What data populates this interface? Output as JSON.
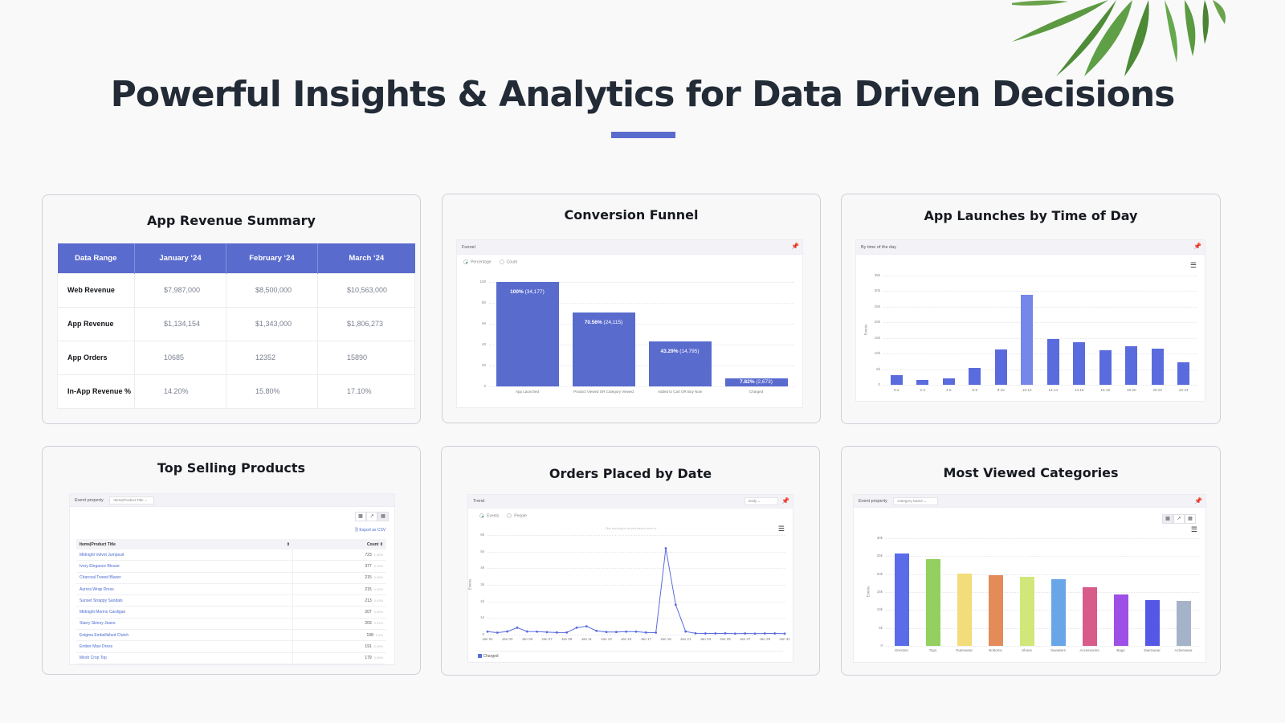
{
  "hero": {
    "title": "Powerful Insights & Analytics for Data Driven Decisions",
    "accent_color": "#5a6bce"
  },
  "decoration": {
    "leaves": "palm-leaves-image"
  },
  "cards": {
    "revenue": {
      "title": "App Revenue Summary",
      "headers": [
        "Data Range",
        "January ‘24",
        "February ‘24",
        "March ‘24"
      ],
      "rows": [
        {
          "label": "Web Revenue",
          "values": [
            "$7,987,000",
            "$8,500,000",
            "$10,563,000"
          ]
        },
        {
          "label": "App Revenue",
          "values": [
            "$1,134,154",
            "$1,343,000",
            "$1,806,273"
          ]
        },
        {
          "label": "App Orders",
          "values": [
            "10685",
            "12352",
            "15890"
          ]
        },
        {
          "label": "In-App Revenue %",
          "values": [
            "14.20%",
            "15.80%",
            "17.10%"
          ]
        }
      ]
    },
    "funnel": {
      "title": "Conversion Funnel",
      "panel_title": "Funnel",
      "radio": [
        "Percentage",
        "Count"
      ],
      "radio_selected": "Percentage",
      "bar_labels_bold": [
        "100%",
        "70.56%",
        "43.29%",
        "7.82%"
      ],
      "bar_labels_count": [
        "(34,177)",
        "(24,115)",
        "(14,795)",
        "(2,673)"
      ]
    },
    "launches": {
      "title": "App Launches by Time of Day",
      "panel_title": "By time of the day",
      "yaxis_title": "Events"
    },
    "products": {
      "title": "Top Selling Products",
      "event_property_label": "Event property",
      "event_property_value": "Items|Product Title",
      "export_label": "Export as CSV",
      "col_title": "Items|Product Title",
      "col_count": "Count",
      "rows": [
        {
          "name": "Midnight Velvet Jumpsuit",
          "count": "723",
          "pct": "1.45%"
        },
        {
          "name": "Ivory Elegance Blouse",
          "count": "377",
          "pct": "0.76%"
        },
        {
          "name": "Charcoal Tweed Blazer",
          "count": "215",
          "pct": "0.43%"
        },
        {
          "name": "Aurora Wrap Dress",
          "count": "215",
          "pct": "0.43%"
        },
        {
          "name": "Sunset Strappy Sandals",
          "count": "213",
          "pct": "0.43%"
        },
        {
          "name": "Midnight Merino Cardigan",
          "count": "207",
          "pct": "0.42%"
        },
        {
          "name": "Starry Skinny Jeans",
          "count": "203",
          "pct": "0.41%"
        },
        {
          "name": "Enigma Embellished Clutch",
          "count": "198",
          "pct": "0.4%"
        },
        {
          "name": "Ember Maxi Dress",
          "count": "191",
          "pct": "0.38%"
        },
        {
          "name": "Mesh Crop Top",
          "count": "179",
          "pct": "0.36%"
        }
      ]
    },
    "orders": {
      "title": "Orders Placed by Date",
      "panel_title": "Trend",
      "granularity": "Daily",
      "radio": [
        "Events",
        "People"
      ],
      "radio_selected": "Events",
      "hint": "Click and drag in the plot area to zoom in",
      "yaxis_title": "Events",
      "legend": "Charged"
    },
    "categories": {
      "title": "Most Viewed Categories",
      "event_property_label": "Event property",
      "event_property_value": "Category Name",
      "yaxis_title": "Events"
    }
  },
  "chart_data": [
    {
      "type": "bar",
      "title": "Conversion Funnel",
      "categories": [
        "App Launched",
        "Product Viewed OR Category Viewed",
        "Added to Cart OR Buy Now",
        "Charged"
      ],
      "values": [
        100,
        70.56,
        43.29,
        7.82
      ],
      "counts": [
        34177,
        24115,
        14795,
        2673
      ],
      "xlabel": "",
      "ylabel": "",
      "ylim": [
        0,
        100
      ],
      "yticks": [
        "0",
        "20",
        "40",
        "60",
        "80",
        "100"
      ],
      "color": "#5a6bce",
      "grid": true
    },
    {
      "type": "bar",
      "title": "App Launches by Time of Day",
      "categories": [
        "0-2",
        "2-4",
        "4-6",
        "6-8",
        "8-10",
        "10-12",
        "12-14",
        "14-16",
        "16-18",
        "18-20",
        "20-22",
        "22-24"
      ],
      "values": [
        3000,
        1500,
        2000,
        5500,
        11300,
        28900,
        14600,
        13600,
        11000,
        12300,
        11500,
        7300
      ],
      "xlabel": "",
      "ylabel": "Events",
      "ylim": [
        0,
        35000
      ],
      "yticks": [
        "0",
        "5k",
        "10k",
        "15k",
        "20k",
        "25k",
        "30k",
        "35k"
      ],
      "color": "#5a6bde",
      "highlight_color": "#7587e8",
      "grid": true
    },
    {
      "type": "line",
      "title": "Orders Placed by Date",
      "x": [
        "Jan 01",
        "Jan 02",
        "Jan 03",
        "Jan 04",
        "Jan 05",
        "Jan 06",
        "Jan 07",
        "Jan 08",
        "Jan 09",
        "Jan 10",
        "Jan 11",
        "Jan 12",
        "Jan 13",
        "Jan 14",
        "Jan 15",
        "Jan 16",
        "Jan 17",
        "Jan 18",
        "Jan 19",
        "Jan 20",
        "Jan 21",
        "Jan 22",
        "Jan 23",
        "Jan 24",
        "Jan 25",
        "Jan 26",
        "Jan 27",
        "Jan 28",
        "Jan 29",
        "Jan 30",
        "Jan 31"
      ],
      "xticks": [
        "Jan 01",
        "Jan 03",
        "Jan 05",
        "Jan 07",
        "Jan 09",
        "Jan 11",
        "Jan 13",
        "Jan 15",
        "Jan 17",
        "Jan 19",
        "Jan 21",
        "Jan 23",
        "Jan 25",
        "Jan 27",
        "Jan 29",
        "Jan 31"
      ],
      "series": [
        {
          "name": "Charged",
          "values": [
            180,
            120,
            190,
            420,
            190,
            180,
            150,
            130,
            130,
            420,
            500,
            230,
            160,
            160,
            180,
            180,
            130,
            120,
            5200,
            1800,
            190,
            80,
            70,
            70,
            80,
            60,
            70,
            60,
            70,
            70,
            60
          ]
        }
      ],
      "xlabel": "",
      "ylabel": "Events",
      "ylim": [
        0,
        6000
      ],
      "yticks": [
        "0",
        "1k",
        "2k",
        "3k",
        "4k",
        "5k",
        "6k"
      ],
      "color": "#5a6bde",
      "grid": true,
      "legend_position": "bottom-left"
    },
    {
      "type": "bar",
      "title": "Most Viewed Categories",
      "categories": [
        "Dresses",
        "Tops",
        "Outerwear",
        "Bottoms",
        "Shoes",
        "Sweaters",
        "Accessories",
        "Bags",
        "Swimwear",
        "Activewear"
      ],
      "values": [
        25700,
        24200,
        20200,
        19700,
        19200,
        18500,
        16300,
        14300,
        12700,
        12500
      ],
      "colors": [
        "#5a6ce8",
        "#94d05f",
        "#f3dc7a",
        "#e48b5a",
        "#d1e77a",
        "#69a6e8",
        "#d85c8a",
        "#9e4fe6",
        "#5558e6",
        "#a5b3c9"
      ],
      "xlabel": "",
      "ylabel": "Events",
      "ylim": [
        0,
        30000
      ],
      "yticks": [
        "0",
        "5k",
        "10k",
        "15k",
        "20k",
        "25k",
        "30k"
      ],
      "grid": true
    }
  ]
}
